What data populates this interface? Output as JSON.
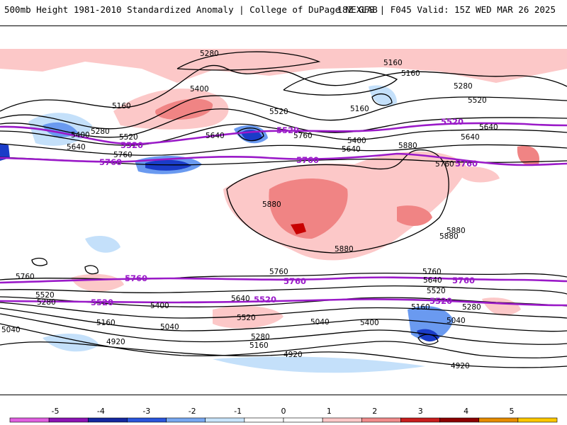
{
  "header": {
    "title_left": "500mb Height 1981-2010 Standardized Anomaly | College of DuPage NEXLAB",
    "title_right": "18Z GFS | F045 Valid: 15Z WED MAR 26 2025"
  },
  "map": {
    "contour_labels": [
      {
        "id": "lbl-5280-a",
        "text": "5280"
      },
      {
        "id": "lbl-5160-a",
        "text": "5160"
      },
      {
        "id": "lbl-5160-b",
        "text": "5160"
      },
      {
        "id": "lbl-5400-a",
        "text": "5400"
      },
      {
        "id": "lbl-5280-b",
        "text": "5280"
      },
      {
        "id": "lbl-5160-c",
        "text": "5160"
      },
      {
        "id": "lbl-5520-a",
        "text": "5520"
      },
      {
        "id": "lbl-5160-d",
        "text": "5160"
      },
      {
        "id": "lbl-5520-b",
        "text": "5520"
      },
      {
        "id": "lbl-5640-a",
        "text": "5640"
      },
      {
        "id": "lbl-5400-b",
        "text": "5400"
      },
      {
        "id": "lbl-5280-c",
        "text": "5280"
      },
      {
        "id": "lbl-5520-c",
        "text": "5520"
      },
      {
        "id": "lbl-5640-b",
        "text": "5640"
      },
      {
        "id": "lbl-5760-a",
        "text": "5760"
      },
      {
        "id": "lbl-5640-c",
        "text": "5640"
      },
      {
        "id": "lbl-5760-b",
        "text": "5760"
      },
      {
        "id": "lbl-5400-c",
        "text": "5400"
      },
      {
        "id": "lbl-5640-d",
        "text": "5640"
      },
      {
        "id": "lbl-5880-a",
        "text": "5880"
      },
      {
        "id": "lbl-5760-c",
        "text": "5760"
      },
      {
        "id": "lbl-5640-e",
        "text": "5640"
      },
      {
        "id": "lbl-5880-b",
        "text": "5880"
      },
      {
        "id": "lbl-5880-c",
        "text": "5880"
      },
      {
        "id": "lbl-5880-d",
        "text": "5880"
      },
      {
        "id": "lbl-5880-e",
        "text": "5880"
      },
      {
        "id": "lbl-5760-d",
        "text": "5760"
      },
      {
        "id": "lbl-5760-e",
        "text": "5760"
      },
      {
        "id": "lbl-5760-f",
        "text": "5760"
      },
      {
        "id": "lbl-5640-f",
        "text": "5640"
      },
      {
        "id": "lbl-5520-d",
        "text": "5520"
      },
      {
        "id": "lbl-5280-d",
        "text": "5280"
      },
      {
        "id": "lbl-5400-d",
        "text": "5400"
      },
      {
        "id": "lbl-5640-g",
        "text": "5640"
      },
      {
        "id": "lbl-5520-e",
        "text": "5520"
      },
      {
        "id": "lbl-5160-e",
        "text": "5160"
      },
      {
        "id": "lbl-5040-a",
        "text": "5040"
      },
      {
        "id": "lbl-5040-b",
        "text": "5040"
      },
      {
        "id": "lbl-5280-e",
        "text": "5280"
      },
      {
        "id": "lbl-5160-f",
        "text": "5160"
      },
      {
        "id": "lbl-4920-a",
        "text": "4920"
      },
      {
        "id": "lbl-4920-b",
        "text": "4920"
      },
      {
        "id": "lbl-5040-c",
        "text": "5040"
      },
      {
        "id": "lbl-5400-e",
        "text": "5400"
      },
      {
        "id": "lbl-5520-f",
        "text": "5520"
      },
      {
        "id": "lbl-5160-g",
        "text": "5160"
      },
      {
        "id": "lbl-5280-f",
        "text": "5280"
      },
      {
        "id": "lbl-5040-d",
        "text": "5040"
      },
      {
        "id": "lbl-4920-c",
        "text": "4920"
      }
    ],
    "purple_labels": [
      {
        "id": "plbl-5520-nh-1",
        "text": "5520"
      },
      {
        "id": "plbl-5520-nh-2",
        "text": "5520"
      },
      {
        "id": "plbl-5520-nh-3",
        "text": "5520"
      },
      {
        "id": "plbl-5760-nh-1",
        "text": "5760"
      },
      {
        "id": "plbl-5760-nh-2",
        "text": "5760"
      },
      {
        "id": "plbl-5760-nh-3",
        "text": "5760"
      },
      {
        "id": "plbl-5760-sh-1",
        "text": "5760"
      },
      {
        "id": "plbl-5760-sh-2",
        "text": "5760"
      },
      {
        "id": "plbl-5760-sh-3",
        "text": "5760"
      },
      {
        "id": "plbl-5520-sh-1",
        "text": "5520"
      },
      {
        "id": "plbl-5520-sh-2",
        "text": "5520"
      },
      {
        "id": "plbl-5520-sh-3",
        "text": "5520"
      }
    ],
    "colors": {
      "contour": "#000000",
      "purple": "#9a1ac8",
      "pos1": "#fcc8c8",
      "pos2": "#f08484",
      "pos3": "#c80000",
      "neg1": "#c4e0fa",
      "neg2": "#6a9af0",
      "neg3": "#1a3cc8"
    }
  },
  "colorbar": {
    "ticks": [
      "-5",
      "-4",
      "-3",
      "-2",
      "-1",
      "0",
      "1",
      "2",
      "3",
      "4",
      "5"
    ],
    "colors": [
      "#e060e0",
      "#8c14b4",
      "#1428a0",
      "#2a56dc",
      "#78a8f0",
      "#c8e4fa",
      "#ffffff",
      "#ffffff",
      "#fcc8c8",
      "#f08c8c",
      "#c81e1e",
      "#8c0000",
      "#e68c00",
      "#ffc800"
    ]
  }
}
